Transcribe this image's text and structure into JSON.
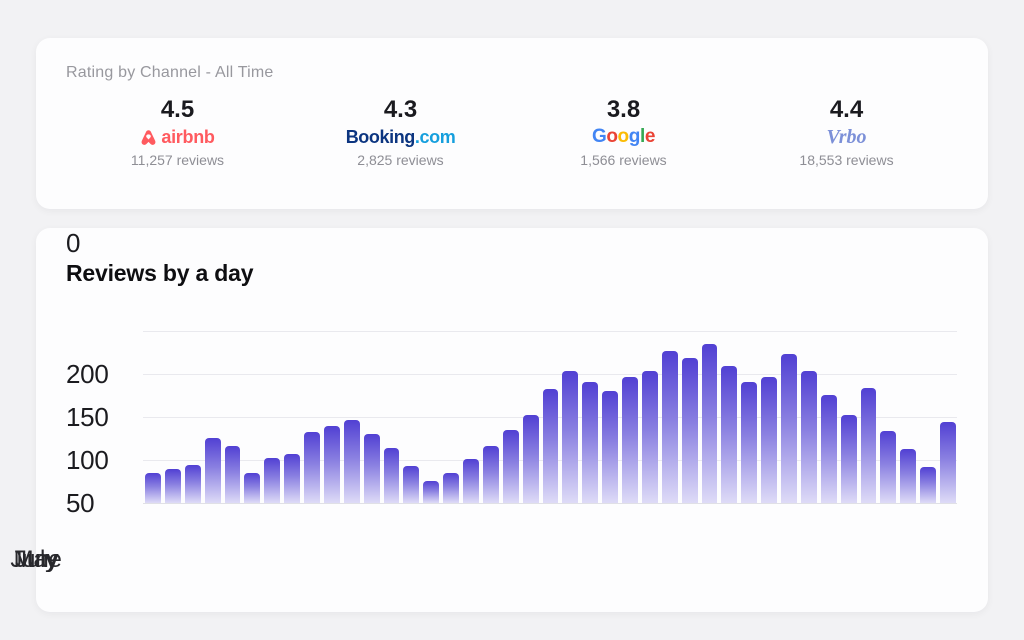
{
  "rating_card": {
    "title": "Rating by Channel - All Time",
    "channels": [
      {
        "name": "airbnb",
        "rating": "4.5",
        "reviews": "11,257 reviews",
        "logo_text": "airbnb",
        "brand_color": "#FF5A5F"
      },
      {
        "name": "booking.com",
        "rating": "4.3",
        "reviews": "2,825 reviews",
        "logo_part1": "Booking",
        "logo_part2": ".com",
        "brand_color_1": "#0c3580",
        "brand_color_2": "#169fdd"
      },
      {
        "name": "google",
        "rating": "3.8",
        "reviews": "1,566 reviews",
        "logo_letters": [
          {
            "ch": "G",
            "color": "#4285F4"
          },
          {
            "ch": "o",
            "color": "#EA4335"
          },
          {
            "ch": "o",
            "color": "#FBBC05"
          },
          {
            "ch": "g",
            "color": "#4285F4"
          },
          {
            "ch": "l",
            "color": "#34A853"
          },
          {
            "ch": "e",
            "color": "#EA4335"
          }
        ]
      },
      {
        "name": "vrbo",
        "rating": "4.4",
        "reviews": "18,553 reviews",
        "logo_text": "Vrbo",
        "brand_color": "#7C90D8"
      }
    ]
  },
  "chart_card": {
    "title": "Reviews by a day"
  },
  "chart_data": {
    "type": "bar",
    "title": "Reviews by a day",
    "ylim": [
      0,
      200
    ],
    "y_ticks": [
      "0",
      "50",
      "100",
      "150",
      "200"
    ],
    "x_tick_labels": [
      "May",
      "June",
      "July"
    ],
    "grid": true,
    "legend": false,
    "bar_gradient_top": "#5140d3",
    "bar_gradient_bottom": "#dedbf7",
    "values": [
      35,
      39,
      44,
      76,
      66,
      35,
      52,
      57,
      82,
      90,
      96,
      80,
      64,
      43,
      26,
      35,
      51,
      66,
      85,
      102,
      132,
      154,
      141,
      130,
      147,
      154,
      177,
      169,
      185,
      159,
      141,
      146,
      173,
      154,
      125,
      102,
      134,
      84,
      63,
      42,
      94
    ]
  }
}
